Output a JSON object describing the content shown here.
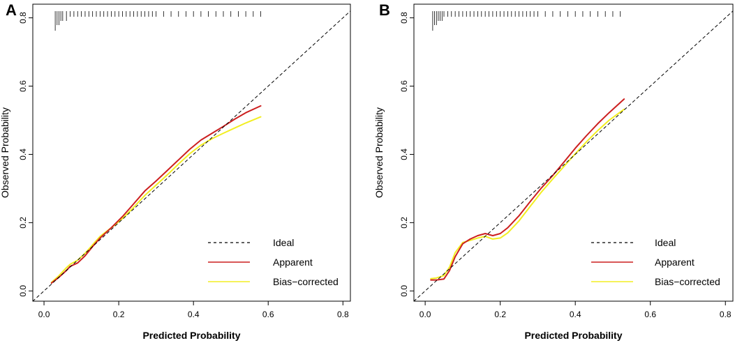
{
  "figure": {
    "colors": {
      "ideal": "#000000",
      "apparent": "#cc1f1f",
      "bias_corrected": "#f2ee22",
      "axis": "#000000"
    }
  },
  "chart_data": [
    {
      "panel": "A",
      "type": "line",
      "xlabel": "Predicted Probability",
      "ylabel": "Observed Probability",
      "xlim": [
        -0.03,
        0.82
      ],
      "ylim": [
        -0.03,
        0.84
      ],
      "xticks": [
        0.0,
        0.2,
        0.4,
        0.6,
        0.8
      ],
      "yticks": [
        0.0,
        0.2,
        0.4,
        0.6,
        0.8
      ],
      "xtick_labels": [
        "0.0",
        "0.2",
        "0.4",
        "0.6",
        "0.8"
      ],
      "ytick_labels": [
        "0.0",
        "0.2",
        "0.4",
        "0.6",
        "0.8"
      ],
      "legend_position": "bottom-right",
      "legend": [
        "Ideal",
        "Apparent",
        "Bias−corrected"
      ],
      "rug": [
        0.03,
        0.035,
        0.04,
        0.045,
        0.05,
        0.06,
        0.07,
        0.08,
        0.09,
        0.1,
        0.11,
        0.12,
        0.13,
        0.14,
        0.15,
        0.16,
        0.17,
        0.18,
        0.19,
        0.2,
        0.21,
        0.22,
        0.23,
        0.24,
        0.25,
        0.26,
        0.27,
        0.28,
        0.29,
        0.3,
        0.32,
        0.34,
        0.36,
        0.38,
        0.4,
        0.42,
        0.44,
        0.46,
        0.48,
        0.5,
        0.52,
        0.54,
        0.56,
        0.58
      ],
      "series": [
        {
          "name": "Ideal",
          "style": "dashed",
          "x": [
            -0.03,
            0.82
          ],
          "y": [
            -0.03,
            0.82
          ]
        },
        {
          "name": "Apparent",
          "x": [
            0.02,
            0.04,
            0.06,
            0.07,
            0.09,
            0.11,
            0.13,
            0.15,
            0.18,
            0.21,
            0.24,
            0.27,
            0.3,
            0.33,
            0.36,
            0.39,
            0.42,
            0.45,
            0.48,
            0.51,
            0.54,
            0.58
          ],
          "y": [
            0.023,
            0.04,
            0.06,
            0.072,
            0.082,
            0.103,
            0.13,
            0.155,
            0.185,
            0.218,
            0.255,
            0.293,
            0.322,
            0.353,
            0.384,
            0.415,
            0.442,
            0.462,
            0.482,
            0.503,
            0.522,
            0.542
          ]
        },
        {
          "name": "Bias−corrected",
          "x": [
            0.02,
            0.04,
            0.06,
            0.07,
            0.09,
            0.11,
            0.13,
            0.15,
            0.18,
            0.21,
            0.24,
            0.27,
            0.3,
            0.33,
            0.36,
            0.39,
            0.42,
            0.45,
            0.48,
            0.51,
            0.54,
            0.58
          ],
          "y": [
            0.025,
            0.045,
            0.068,
            0.078,
            0.09,
            0.11,
            0.135,
            0.16,
            0.185,
            0.212,
            0.245,
            0.28,
            0.31,
            0.34,
            0.372,
            0.402,
            0.427,
            0.446,
            0.462,
            0.477,
            0.492,
            0.51
          ]
        }
      ]
    },
    {
      "panel": "B",
      "type": "line",
      "xlabel": "Predicted Probability",
      "ylabel": "Observed Probability",
      "xlim": [
        -0.03,
        0.82
      ],
      "ylim": [
        -0.03,
        0.84
      ],
      "xticks": [
        0.0,
        0.2,
        0.4,
        0.6,
        0.8
      ],
      "yticks": [
        0.0,
        0.2,
        0.4,
        0.6,
        0.8
      ],
      "xtick_labels": [
        "0.0",
        "0.2",
        "0.4",
        "0.6",
        "0.8"
      ],
      "ytick_labels": [
        "0.0",
        "0.2",
        "0.4",
        "0.6",
        "0.8"
      ],
      "legend_position": "bottom-right",
      "legend": [
        "Ideal",
        "Apparent",
        "Bias−corrected"
      ],
      "rug": [
        0.02,
        0.025,
        0.03,
        0.035,
        0.04,
        0.045,
        0.05,
        0.06,
        0.07,
        0.08,
        0.09,
        0.1,
        0.11,
        0.12,
        0.13,
        0.14,
        0.15,
        0.16,
        0.17,
        0.18,
        0.19,
        0.2,
        0.21,
        0.22,
        0.23,
        0.24,
        0.25,
        0.26,
        0.27,
        0.28,
        0.29,
        0.3,
        0.32,
        0.34,
        0.36,
        0.38,
        0.4,
        0.42,
        0.44,
        0.46,
        0.48,
        0.5,
        0.52
      ],
      "series": [
        {
          "name": "Ideal",
          "style": "dashed",
          "x": [
            -0.03,
            0.82
          ],
          "y": [
            -0.03,
            0.82
          ]
        },
        {
          "name": "Apparent",
          "x": [
            0.015,
            0.03,
            0.05,
            0.065,
            0.08,
            0.1,
            0.12,
            0.14,
            0.16,
            0.18,
            0.2,
            0.22,
            0.25,
            0.28,
            0.31,
            0.34,
            0.37,
            0.4,
            0.43,
            0.46,
            0.49,
            0.53
          ],
          "y": [
            0.032,
            0.032,
            0.035,
            0.06,
            0.1,
            0.138,
            0.152,
            0.162,
            0.168,
            0.162,
            0.168,
            0.185,
            0.22,
            0.262,
            0.302,
            0.338,
            0.378,
            0.418,
            0.455,
            0.49,
            0.522,
            0.562
          ]
        },
        {
          "name": "Bias−corrected",
          "x": [
            0.015,
            0.03,
            0.05,
            0.065,
            0.08,
            0.1,
            0.12,
            0.14,
            0.16,
            0.18,
            0.2,
            0.22,
            0.25,
            0.28,
            0.31,
            0.34,
            0.37,
            0.4,
            0.43,
            0.46,
            0.49,
            0.53
          ],
          "y": [
            0.036,
            0.038,
            0.045,
            0.07,
            0.112,
            0.142,
            0.148,
            0.155,
            0.16,
            0.152,
            0.155,
            0.17,
            0.205,
            0.248,
            0.29,
            0.328,
            0.365,
            0.402,
            0.437,
            0.47,
            0.5,
            0.532
          ]
        }
      ]
    }
  ]
}
